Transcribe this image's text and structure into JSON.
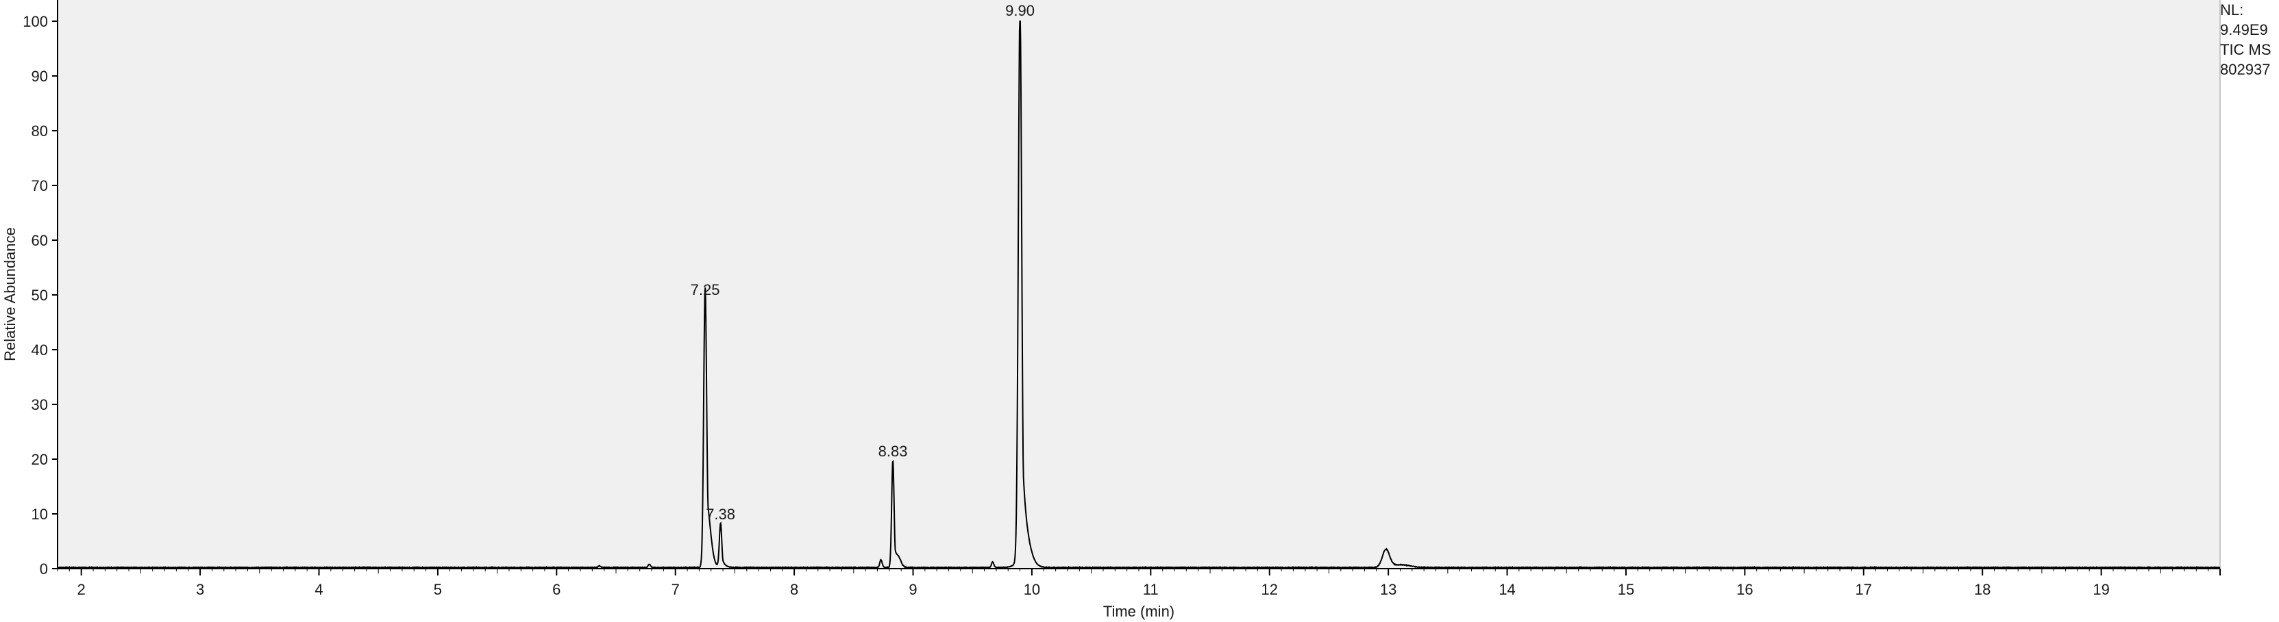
{
  "info_box": {
    "line1": "NL:",
    "line2": "9.49E9",
    "line3": "TIC  MS",
    "line4": "802937"
  },
  "chart_data": {
    "type": "line",
    "title": "",
    "xlabel": "Time (min)",
    "ylabel": "Relative Abundance",
    "xlim": [
      1.8,
      20.0
    ],
    "ylim": [
      0,
      100
    ],
    "x_ticks": [
      2,
      3,
      4,
      5,
      6,
      7,
      8,
      9,
      10,
      11,
      12,
      13,
      14,
      15,
      16,
      17,
      18,
      19
    ],
    "y_ticks": [
      0,
      10,
      20,
      30,
      40,
      50,
      60,
      70,
      80,
      90,
      100
    ],
    "grid": false,
    "legend": "none",
    "colors": {
      "line": "#000000",
      "plot_background": "#f0f0f0"
    },
    "peaks": [
      {
        "label": "7.25",
        "x": 7.25,
        "y": 49,
        "width": 0.012
      },
      {
        "label": "7.38",
        "x": 7.38,
        "y": 8,
        "width": 0.01
      },
      {
        "label": "8.83",
        "x": 8.83,
        "y": 19.5,
        "width": 0.01
      },
      {
        "label": "9.90",
        "x": 9.9,
        "y": 100,
        "width": 0.014
      }
    ],
    "minor_peaks": [
      {
        "x": 6.36,
        "y": 0.3,
        "width": 0.01
      },
      {
        "x": 6.78,
        "y": 0.6,
        "width": 0.01
      },
      {
        "x": 7.28,
        "y": 4.5,
        "width": 0.025
      },
      {
        "x": 8.73,
        "y": 1.4,
        "width": 0.01
      },
      {
        "x": 8.88,
        "y": 1.3,
        "width": 0.02
      },
      {
        "x": 9.67,
        "y": 1.0,
        "width": 0.01
      },
      {
        "x": 9.94,
        "y": 3.0,
        "width": 0.05
      },
      {
        "x": 12.98,
        "y": 3.2,
        "width": 0.03
      },
      {
        "x": 13.1,
        "y": 0.5,
        "width": 0.08
      }
    ]
  }
}
